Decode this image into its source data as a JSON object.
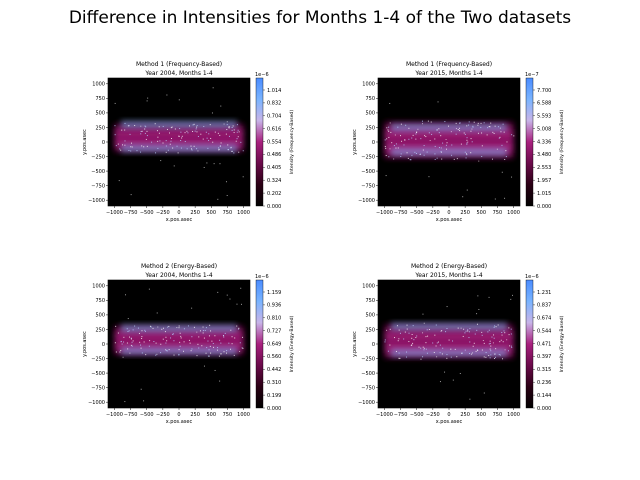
{
  "figure": {
    "title": "Difference in Intensities for Months 1-4 of the Two datasets"
  },
  "colormap": [
    "#000000",
    "#2a0014",
    "#6a0a4a",
    "#a8207e",
    "#c8b4e8",
    "#7ab4ff",
    "#4a8cff"
  ],
  "chart_data": [
    {
      "type": "heatmap",
      "title": "Method 1 (Frequency-Based)",
      "subtitle": "Year 2004, Months 1-4",
      "xlabel": "x.pos.asec",
      "ylabel": "y.pos.asec",
      "xticks": [
        "−1000",
        "−750",
        "−500",
        "−250",
        "0",
        "250",
        "500",
        "750",
        "1000"
      ],
      "yticks": [
        "1000",
        "750",
        "500",
        "250",
        "0",
        "−250",
        "−500",
        "−750",
        "−1000"
      ],
      "xlim": [
        -1100,
        1100
      ],
      "ylim": [
        -1100,
        1100
      ],
      "colorbar": {
        "label": "Intensity (Frequency-Based)",
        "multiplier": "1e−6",
        "ticks": [
          "1.014",
          "0.832",
          "0.704",
          "0.616",
          "0.554",
          "0.486",
          "0.405",
          "0.324",
          "0.202",
          "0.000"
        ]
      },
      "band": {
        "y_top": 330,
        "y_bottom": -180,
        "bright_upper_y": 300,
        "bright_lower_y": -110
      }
    },
    {
      "type": "heatmap",
      "title": "Method 1 (Frequency-Based)",
      "subtitle": "Year 2015, Months 1-4",
      "xlabel": "x.pos.asec",
      "ylabel": "y.pos.asec",
      "xticks": [
        "−1000",
        "−750",
        "−500",
        "−250",
        "0",
        "250",
        "500",
        "750",
        "1000"
      ],
      "yticks": [
        "1000",
        "750",
        "500",
        "250",
        "0",
        "−250",
        "−500",
        "−750",
        "−1000"
      ],
      "xlim": [
        -1100,
        1100
      ],
      "ylim": [
        -1100,
        1100
      ],
      "colorbar": {
        "label": "Intensity (Frequency-Based)",
        "multiplier": "1e−7",
        "ticks": [
          "7.700",
          "6.588",
          "5.593",
          "5.008",
          "4.336",
          "3.480",
          "2.553",
          "1.957",
          "1.015",
          "0.000"
        ]
      },
      "band": {
        "y_top": 370,
        "y_bottom": -300,
        "bright_upper_y": 250,
        "bright_lower_y": -170
      }
    },
    {
      "type": "heatmap",
      "title": "Method 2 (Energy-Based)",
      "subtitle": "Year 2004, Months 1-4",
      "xlabel": "x.pos.asec",
      "ylabel": "y.pos.asec",
      "xticks": [
        "−1000",
        "−750",
        "−500",
        "−250",
        "0",
        "250",
        "500",
        "750",
        "1000"
      ],
      "yticks": [
        "1000",
        "750",
        "500",
        "250",
        "0",
        "−250",
        "−500",
        "−750",
        "−1000"
      ],
      "xlim": [
        -1100,
        1100
      ],
      "ylim": [
        -1100,
        1100
      ],
      "colorbar": {
        "label": "Intensity (Energy-Based)",
        "multiplier": "1e−6",
        "ticks": [
          "1.159",
          "0.936",
          "0.810",
          "0.727",
          "0.649",
          "0.560",
          "0.442",
          "0.310",
          "0.199",
          "0.000"
        ]
      },
      "band": {
        "y_top": 330,
        "y_bottom": -200,
        "bright_upper_y": 270,
        "bright_lower_y": -120
      }
    },
    {
      "type": "heatmap",
      "title": "Method 2 (Energy-Based)",
      "subtitle": "Year 2015, Months 1-4",
      "xlabel": "x.pos.asec",
      "ylabel": "y.pos.asec",
      "xticks": [
        "−1000",
        "−750",
        "−500",
        "−250",
        "0",
        "250",
        "500",
        "750",
        "1000"
      ],
      "yticks": [
        "1000",
        "750",
        "500",
        "250",
        "0",
        "−250",
        "−500",
        "−750",
        "−1000"
      ],
      "xlim": [
        -1100,
        1100
      ],
      "ylim": [
        -1100,
        1100
      ],
      "colorbar": {
        "label": "Intensity (Energy-Based)",
        "multiplier": "1e−6",
        "ticks": [
          "1.231",
          "0.837",
          "0.674",
          "0.544",
          "0.471",
          "0.397",
          "0.315",
          "0.236",
          "0.144",
          "0.000"
        ]
      },
      "band": {
        "y_top": 360,
        "y_bottom": -260,
        "bright_upper_y": 300,
        "bright_lower_y": -150
      }
    }
  ]
}
